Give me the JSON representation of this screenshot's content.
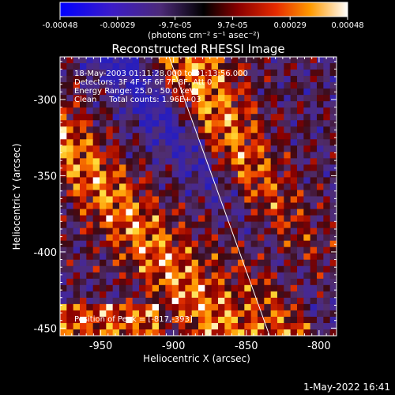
{
  "colorbar": {
    "ticks": [
      "-0.00048",
      "-0.00029",
      "-9.7e-05",
      "9.7e-05",
      "0.00029",
      "0.00048"
    ],
    "unit_label": "(photons cm⁻² s⁻¹ asec⁻²)"
  },
  "chart_data": {
    "type": "heatmap",
    "title": "Reconstructed RHESSI Image",
    "xlabel": "Heliocentric X (arcsec)",
    "ylabel": "Heliocentric Y (arcsec)",
    "xlim": [
      -978,
      -788
    ],
    "ylim": [
      -455,
      -272
    ],
    "x_ticks": [
      "-950",
      "-900",
      "-850",
      "-800"
    ],
    "y_ticks": [
      "-300",
      "-350",
      "-400",
      "-450"
    ],
    "x_tick_values": [
      -950,
      -900,
      -850,
      -800
    ],
    "y_tick_values": [
      -300,
      -350,
      -400,
      -450
    ],
    "color_range": [
      -0.00048,
      0.00048
    ],
    "limb_line": [
      [
        -903,
        -272
      ],
      [
        -834,
        -455
      ]
    ],
    "peak_position": [
      -817,
      -393
    ],
    "annotations": [
      "18-May-2003 01:11:28.000 to 01:13:56.000",
      "Detectors: 3F 4F 5F 6F 7F 8F, Att 0",
      "Energy Range: 25.0 - 50.0 keV",
      "Clean     Total counts: 1.96E+03",
      "Position of Peak = [-817,-393]"
    ]
  },
  "footer": {
    "timestamp": "1-May-2022 16:41"
  }
}
